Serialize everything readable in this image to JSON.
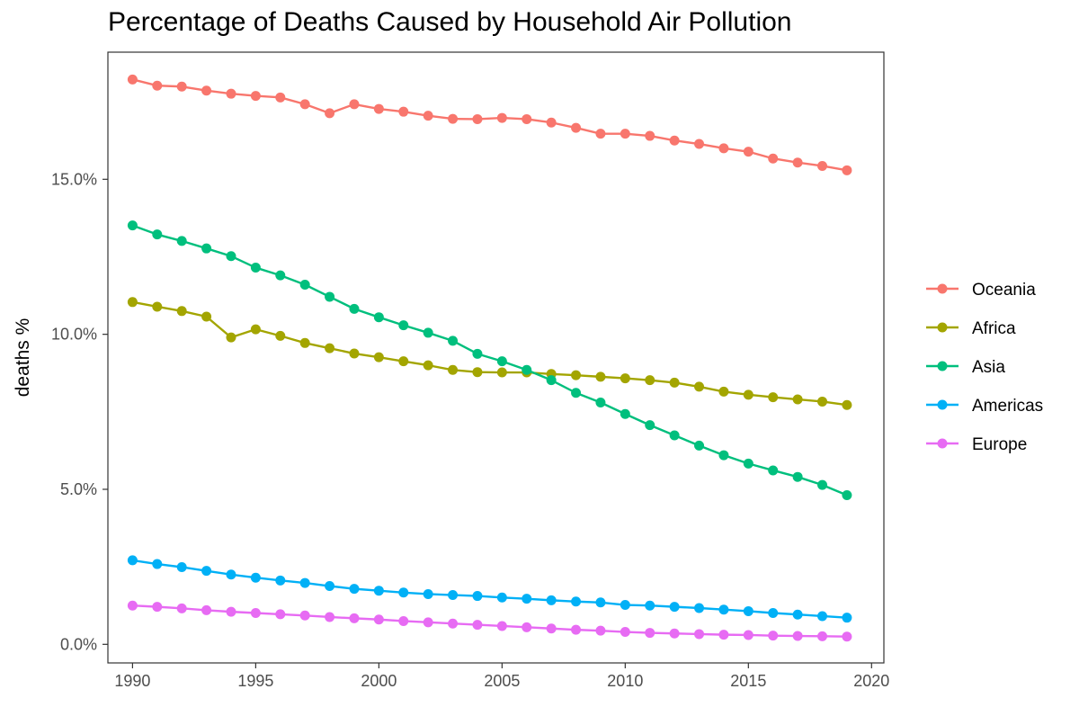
{
  "chart_data": {
    "type": "line",
    "title": "Percentage of Deaths Caused by Household Air Pollution",
    "xlabel": "",
    "ylabel": "deaths %",
    "xlim": [
      1989,
      2020.5
    ],
    "ylim": [
      -0.006,
      0.191
    ],
    "x_ticks": [
      1990,
      1995,
      2000,
      2005,
      2010,
      2015,
      2020
    ],
    "x_tick_labels": [
      "1990",
      "1995",
      "2000",
      "2005",
      "2010",
      "2015",
      "2020"
    ],
    "y_ticks": [
      0.0,
      0.05,
      0.1,
      0.15
    ],
    "y_tick_labels": [
      "0.0%",
      "5.0%",
      "10.0%",
      "15.0%"
    ],
    "grid": false,
    "legend_position": "right",
    "x": [
      1990,
      1991,
      1992,
      1993,
      1994,
      1995,
      1996,
      1997,
      1998,
      1999,
      2000,
      2001,
      2002,
      2003,
      2004,
      2005,
      2006,
      2007,
      2008,
      2009,
      2010,
      2011,
      2012,
      2013,
      2014,
      2015,
      2016,
      2017,
      2018,
      2019
    ],
    "series": [
      {
        "name": "Oceania",
        "color": "#F8766D",
        "values": [
          0.1822,
          0.1802,
          0.1799,
          0.1786,
          0.1776,
          0.1769,
          0.1764,
          0.1742,
          0.1713,
          0.1742,
          0.1727,
          0.1718,
          0.1705,
          0.1695,
          0.1694,
          0.1698,
          0.1694,
          0.1683,
          0.1666,
          0.1647,
          0.1647,
          0.164,
          0.1625,
          0.1614,
          0.16,
          0.1589,
          0.1567,
          0.1554,
          0.1543,
          0.1529
        ]
      },
      {
        "name": "Africa",
        "color": "#A3A500",
        "values": [
          0.1104,
          0.1089,
          0.1075,
          0.1057,
          0.099,
          0.1016,
          0.0995,
          0.0972,
          0.0955,
          0.0938,
          0.0926,
          0.0913,
          0.09,
          0.0885,
          0.0878,
          0.0877,
          0.0877,
          0.0872,
          0.0868,
          0.0863,
          0.0858,
          0.0852,
          0.0844,
          0.0831,
          0.0815,
          0.0805,
          0.0797,
          0.079,
          0.0783,
          0.0772
        ]
      },
      {
        "name": "Asia",
        "color": "#00BF7D",
        "values": [
          0.1351,
          0.1322,
          0.1301,
          0.1277,
          0.1252,
          0.1215,
          0.119,
          0.116,
          0.1121,
          0.1082,
          0.1055,
          0.1029,
          0.1005,
          0.0979,
          0.0937,
          0.0913,
          0.0885,
          0.0852,
          0.0811,
          0.078,
          0.0743,
          0.0707,
          0.0674,
          0.0641,
          0.061,
          0.0583,
          0.0561,
          0.054,
          0.0514,
          0.0481
        ]
      },
      {
        "name": "Americas",
        "color": "#00B0F6",
        "values": [
          0.0271,
          0.0259,
          0.0249,
          0.0237,
          0.0225,
          0.0215,
          0.0206,
          0.0198,
          0.0188,
          0.0179,
          0.0173,
          0.0167,
          0.0162,
          0.0159,
          0.0156,
          0.0151,
          0.0147,
          0.0142,
          0.0138,
          0.0135,
          0.0127,
          0.0125,
          0.0121,
          0.0117,
          0.0112,
          0.0107,
          0.0101,
          0.0096,
          0.0091,
          0.0086
        ]
      },
      {
        "name": "Europe",
        "color": "#E76BF3",
        "values": [
          0.0125,
          0.0121,
          0.0116,
          0.011,
          0.0105,
          0.0101,
          0.0097,
          0.0093,
          0.0088,
          0.0084,
          0.008,
          0.0075,
          0.0071,
          0.0067,
          0.0063,
          0.0059,
          0.0055,
          0.0051,
          0.0047,
          0.0044,
          0.004,
          0.0037,
          0.0035,
          0.0033,
          0.0031,
          0.003,
          0.0028,
          0.0027,
          0.0026,
          0.0025
        ]
      }
    ]
  }
}
